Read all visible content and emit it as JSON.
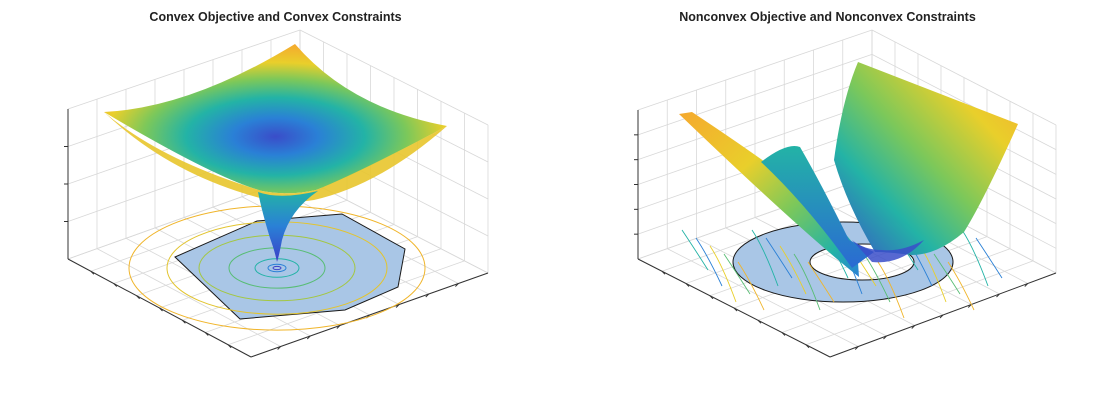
{
  "chart_data": [
    {
      "type": "surface",
      "title": "Convex Objective and Convex Constraints",
      "xlabel": "",
      "ylabel": "",
      "zlabel": "",
      "grid": true,
      "colormap": "parula",
      "features": {
        "surface": "convex bowl with single minimum",
        "feasible_region": "convex polygon (shaded light blue)",
        "contours": "concentric circles around the minimum"
      }
    },
    {
      "type": "surface",
      "title": "Nonconvex Objective and Nonconvex Constraints",
      "xlabel": "",
      "ylabel": "",
      "zlabel": "",
      "grid": true,
      "colormap": "parula",
      "features": {
        "surface": "nonconvex folded surface with multiple ridges",
        "feasible_region": "annulus (ring, shaded light blue)",
        "contours": "irregular contour lines"
      }
    }
  ],
  "colors": {
    "surface_low": "#3a4dc9",
    "surface_mid": "#23b3a6",
    "surface_high": "#f7e21d",
    "surface_orange": "#f7a92a",
    "region_fill": "#a9c6e6",
    "region_edge": "#1a1a1a",
    "grid": "#d8d8d8",
    "axis": "#333333"
  }
}
